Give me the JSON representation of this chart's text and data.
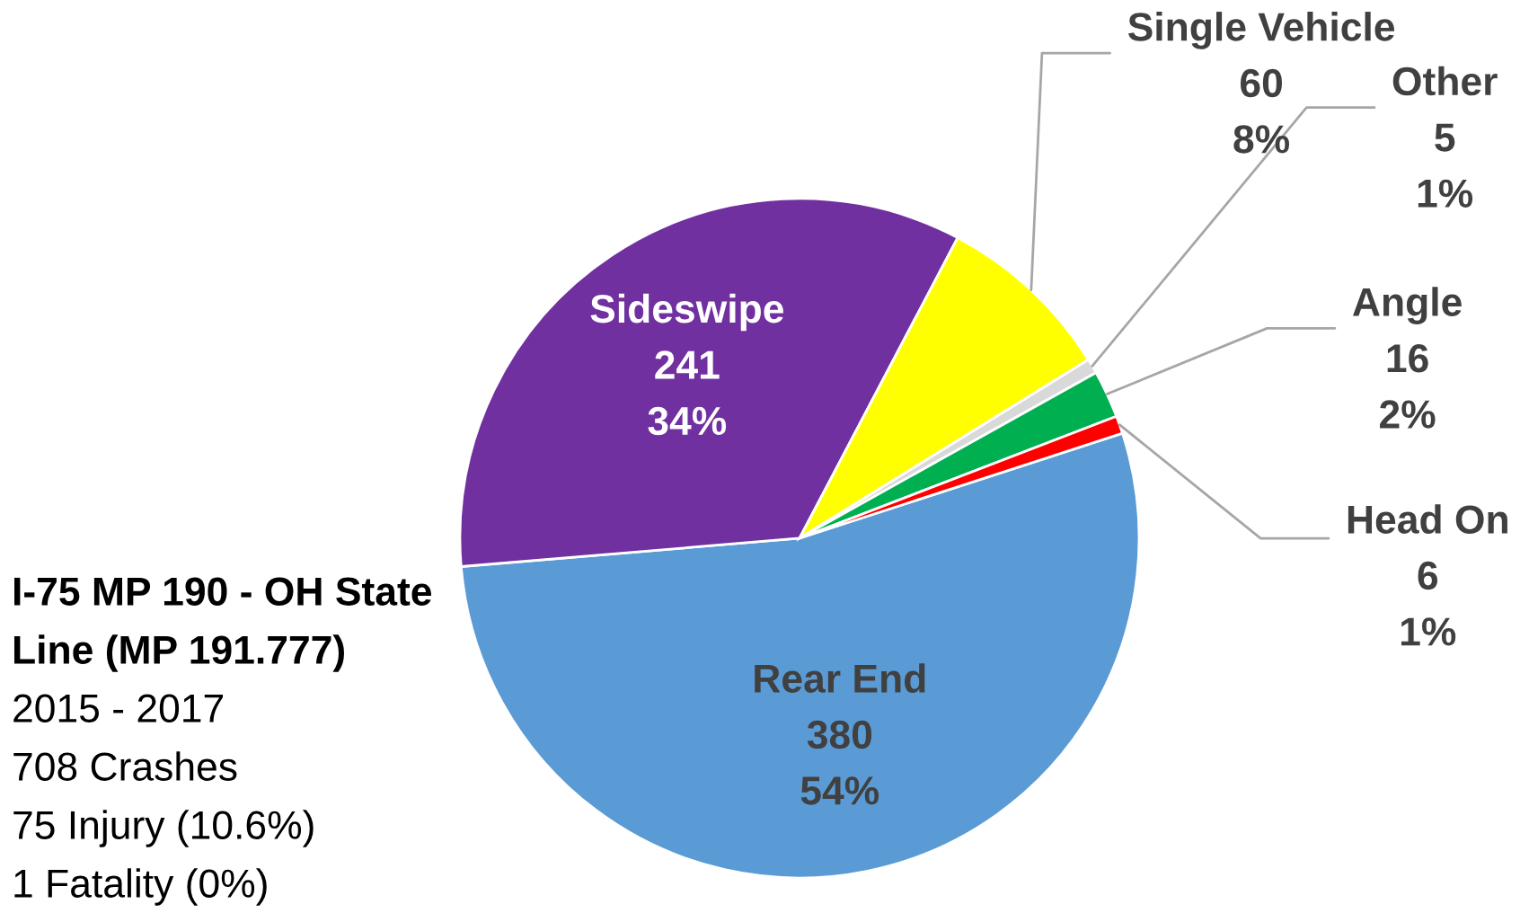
{
  "chart_data": {
    "type": "pie",
    "title": "I-75 MP 190 - OH State Line (MP 191.777)",
    "categories": [
      "Rear End",
      "Sideswipe",
      "Single Vehicle",
      "Other",
      "Angle",
      "Head On"
    ],
    "values": [
      380,
      241,
      60,
      5,
      16,
      6
    ],
    "value_labels": [
      "380\n54%",
      "241\n34%",
      "60\n8%",
      "5\n1%",
      "16\n2%",
      "6\n1%"
    ],
    "colors": [
      "#5b9bd5",
      "#7030a0",
      "#ffff00",
      "#d9d9d9",
      "#00b050",
      "#ff0000"
    ],
    "annotations": [
      "2015 - 2017",
      "708 Crashes",
      "75 Injury (10.6%)",
      "1 Fatality (0%)"
    ],
    "legend": false
  }
}
